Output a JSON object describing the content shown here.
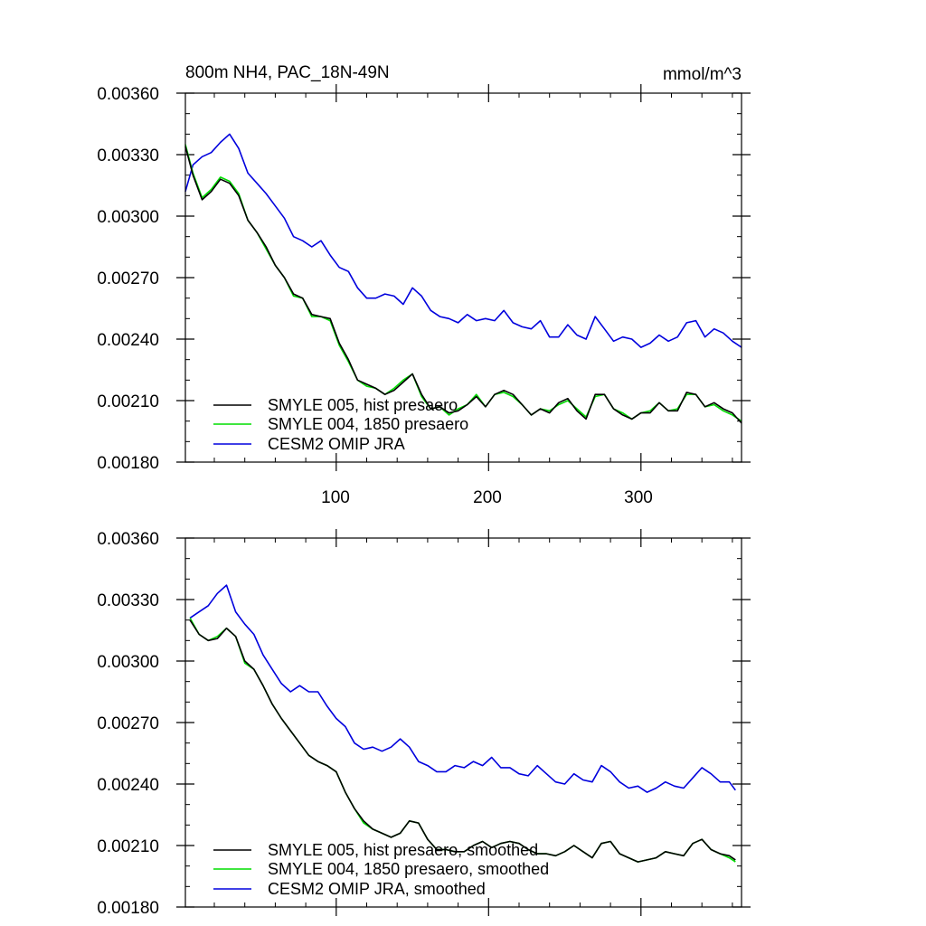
{
  "chart_data": [
    {
      "type": "line",
      "title": "800m NH4, PAC_18N-49N",
      "units": "mmol/m^3",
      "xlim": [
        1,
        366
      ],
      "ylim": [
        0.0018,
        0.0036
      ],
      "yticks": [
        "0.00360",
        "0.00330",
        "0.00300",
        "0.00270",
        "0.00240",
        "0.00210",
        "0.00180"
      ],
      "xticks": [
        "100",
        "200",
        "300"
      ],
      "legend": [
        "SMYLE 005, hist presaero",
        "SMYLE 004, 1850 presaero",
        "CESM2 OMIP JRA"
      ],
      "series": [
        {
          "name": "SMYLE 005, hist presaero",
          "color": "#000000",
          "x": [
            1,
            6,
            12,
            18,
            24,
            30,
            36,
            42,
            48,
            54,
            60,
            66,
            72,
            78,
            84,
            90,
            96,
            102,
            108,
            114,
            120,
            126,
            132,
            138,
            144,
            150,
            156,
            162,
            168,
            174,
            180,
            186,
            192,
            198,
            204,
            210,
            216,
            222,
            228,
            234,
            240,
            246,
            252,
            258,
            264,
            270,
            276,
            282,
            288,
            294,
            300,
            306,
            312,
            318,
            324,
            330,
            336,
            342,
            348,
            354,
            360,
            366
          ],
          "values": [
            0.00334,
            0.0032,
            0.00308,
            0.00312,
            0.00318,
            0.00316,
            0.0031,
            0.00298,
            0.00292,
            0.00285,
            0.00276,
            0.0027,
            0.00262,
            0.0026,
            0.00252,
            0.00251,
            0.0025,
            0.00238,
            0.0023,
            0.0022,
            0.00218,
            0.00216,
            0.00213,
            0.00215,
            0.00219,
            0.00223,
            0.00213,
            0.00206,
            0.00207,
            0.00204,
            0.00205,
            0.00208,
            0.00212,
            0.00207,
            0.00213,
            0.00215,
            0.00213,
            0.00208,
            0.00203,
            0.00206,
            0.00204,
            0.00209,
            0.00211,
            0.00205,
            0.00201,
            0.00213,
            0.00213,
            0.00206,
            0.00203,
            0.00201,
            0.00204,
            0.00204,
            0.00209,
            0.00205,
            0.00205,
            0.00214,
            0.00213,
            0.00207,
            0.00209,
            0.00206,
            0.00204,
            0.00199
          ]
        },
        {
          "name": "SMYLE 004, 1850 presaero",
          "color": "#00dd00",
          "x": [
            1,
            6,
            12,
            18,
            24,
            30,
            36,
            42,
            48,
            54,
            60,
            66,
            72,
            78,
            84,
            90,
            96,
            102,
            108,
            114,
            120,
            126,
            132,
            138,
            144,
            150,
            156,
            162,
            168,
            174,
            180,
            186,
            192,
            198,
            204,
            210,
            216,
            222,
            228,
            234,
            240,
            246,
            252,
            258,
            264,
            270,
            276,
            282,
            288,
            294,
            300,
            306,
            312,
            318,
            324,
            330,
            336,
            342,
            348,
            354,
            360,
            366
          ],
          "values": [
            0.00335,
            0.00321,
            0.00309,
            0.00313,
            0.00319,
            0.00317,
            0.00311,
            0.00298,
            0.00292,
            0.00284,
            0.00276,
            0.0027,
            0.00261,
            0.0026,
            0.00251,
            0.00251,
            0.00249,
            0.00237,
            0.00229,
            0.0022,
            0.00217,
            0.00216,
            0.00213,
            0.00216,
            0.0022,
            0.00223,
            0.00212,
            0.00206,
            0.00207,
            0.00203,
            0.00206,
            0.00208,
            0.00213,
            0.00207,
            0.00213,
            0.00214,
            0.00212,
            0.00208,
            0.00203,
            0.00206,
            0.00205,
            0.00208,
            0.0021,
            0.00206,
            0.00202,
            0.00212,
            0.00213,
            0.00206,
            0.00204,
            0.00201,
            0.00204,
            0.00205,
            0.00209,
            0.00205,
            0.00206,
            0.00213,
            0.00213,
            0.00207,
            0.00208,
            0.00205,
            0.00203,
            0.002
          ]
        },
        {
          "name": "CESM2 OMIP JRA",
          "color": "#0000dd",
          "x": [
            1,
            6,
            12,
            18,
            24,
            30,
            36,
            42,
            48,
            54,
            60,
            66,
            72,
            78,
            84,
            90,
            96,
            102,
            108,
            114,
            120,
            126,
            132,
            138,
            144,
            150,
            156,
            162,
            168,
            174,
            180,
            186,
            192,
            198,
            204,
            210,
            216,
            222,
            228,
            234,
            240,
            246,
            252,
            258,
            264,
            270,
            276,
            282,
            288,
            294,
            300,
            306,
            312,
            318,
            324,
            330,
            336,
            342,
            348,
            354,
            360,
            366
          ],
          "values": [
            0.00312,
            0.00325,
            0.00329,
            0.00331,
            0.00336,
            0.0034,
            0.00333,
            0.00321,
            0.00316,
            0.00311,
            0.00305,
            0.00299,
            0.0029,
            0.00288,
            0.00285,
            0.00288,
            0.00281,
            0.00275,
            0.00273,
            0.00265,
            0.0026,
            0.0026,
            0.00262,
            0.00261,
            0.00257,
            0.00265,
            0.00261,
            0.00254,
            0.00251,
            0.0025,
            0.00248,
            0.00252,
            0.00249,
            0.0025,
            0.00249,
            0.00254,
            0.00248,
            0.00246,
            0.00245,
            0.00249,
            0.00241,
            0.00241,
            0.00247,
            0.00242,
            0.0024,
            0.00251,
            0.00245,
            0.00239,
            0.00241,
            0.0024,
            0.00236,
            0.00238,
            0.00242,
            0.00239,
            0.00241,
            0.00248,
            0.00249,
            0.00241,
            0.00245,
            0.00243,
            0.00239,
            0.00236
          ]
        }
      ]
    },
    {
      "type": "line",
      "title": "",
      "xlim": [
        1,
        366
      ],
      "ylim": [
        0.0018,
        0.0036
      ],
      "yticks": [
        "0.00360",
        "0.00330",
        "0.00300",
        "0.00270",
        "0.00240",
        "0.00210",
        "0.00180"
      ],
      "xticks": [],
      "legend": [
        "SMYLE 005, hist presaero, smoothed",
        "SMYLE 004, 1850 presaero, smoothed",
        "CESM2 OMIP JRA, smoothed"
      ],
      "series": [
        {
          "name": "SMYLE 005, hist presaero, smoothed",
          "color": "#000000",
          "x": [
            4,
            10,
            16,
            22,
            28,
            34,
            40,
            46,
            52,
            58,
            64,
            70,
            76,
            82,
            88,
            94,
            100,
            106,
            112,
            118,
            124,
            130,
            136,
            142,
            148,
            154,
            160,
            166,
            172,
            178,
            184,
            190,
            196,
            202,
            208,
            214,
            220,
            226,
            232,
            238,
            244,
            250,
            256,
            262,
            268,
            274,
            280,
            286,
            292,
            298,
            304,
            310,
            316,
            322,
            328,
            334,
            340,
            346,
            352,
            358,
            362
          ],
          "values": [
            0.0032,
            0.00313,
            0.0031,
            0.00311,
            0.00316,
            0.00312,
            0.003,
            0.00296,
            0.00288,
            0.00279,
            0.00272,
            0.00266,
            0.0026,
            0.00254,
            0.00251,
            0.00249,
            0.00246,
            0.00236,
            0.00228,
            0.00222,
            0.00218,
            0.00216,
            0.00214,
            0.00216,
            0.00222,
            0.00221,
            0.00213,
            0.00208,
            0.00208,
            0.00207,
            0.00207,
            0.0021,
            0.00212,
            0.00209,
            0.00211,
            0.00212,
            0.00211,
            0.00208,
            0.00206,
            0.00206,
            0.00205,
            0.00207,
            0.0021,
            0.00207,
            0.00204,
            0.00211,
            0.00212,
            0.00206,
            0.00204,
            0.00202,
            0.00203,
            0.00204,
            0.00207,
            0.00206,
            0.00205,
            0.00211,
            0.00213,
            0.00208,
            0.00206,
            0.00205,
            0.00203
          ]
        },
        {
          "name": "SMYLE 004, 1850 presaero, smoothed",
          "color": "#00dd00",
          "x": [
            4,
            10,
            16,
            22,
            28,
            34,
            40,
            46,
            52,
            58,
            64,
            70,
            76,
            82,
            88,
            94,
            100,
            106,
            112,
            118,
            124,
            130,
            136,
            142,
            148,
            154,
            160,
            166,
            172,
            178,
            184,
            190,
            196,
            202,
            208,
            214,
            220,
            226,
            232,
            238,
            244,
            250,
            256,
            262,
            268,
            274,
            280,
            286,
            292,
            298,
            304,
            310,
            316,
            322,
            328,
            334,
            340,
            346,
            352,
            358,
            362
          ],
          "values": [
            0.00321,
            0.00313,
            0.0031,
            0.00312,
            0.00316,
            0.00312,
            0.00299,
            0.00296,
            0.00288,
            0.00279,
            0.00272,
            0.00266,
            0.0026,
            0.00254,
            0.00251,
            0.00249,
            0.00246,
            0.00236,
            0.00228,
            0.00221,
            0.00218,
            0.00216,
            0.00214,
            0.00216,
            0.00222,
            0.00221,
            0.00213,
            0.00208,
            0.00208,
            0.00207,
            0.00207,
            0.0021,
            0.00212,
            0.00209,
            0.00211,
            0.00212,
            0.00211,
            0.00208,
            0.00206,
            0.00206,
            0.00205,
            0.00207,
            0.0021,
            0.00207,
            0.00204,
            0.00211,
            0.00212,
            0.00206,
            0.00204,
            0.00202,
            0.00203,
            0.00204,
            0.00207,
            0.00206,
            0.00205,
            0.00211,
            0.00213,
            0.00208,
            0.00206,
            0.00204,
            0.00202
          ]
        },
        {
          "name": "CESM2 OMIP JRA, smoothed",
          "color": "#0000dd",
          "x": [
            4,
            10,
            16,
            22,
            28,
            34,
            40,
            46,
            52,
            58,
            64,
            70,
            76,
            82,
            88,
            94,
            100,
            106,
            112,
            118,
            124,
            130,
            136,
            142,
            148,
            154,
            160,
            166,
            172,
            178,
            184,
            190,
            196,
            202,
            208,
            214,
            220,
            226,
            232,
            238,
            244,
            250,
            256,
            262,
            268,
            274,
            280,
            286,
            292,
            298,
            304,
            310,
            316,
            322,
            328,
            334,
            340,
            346,
            352,
            358,
            362
          ],
          "values": [
            0.00321,
            0.00324,
            0.00327,
            0.00333,
            0.00337,
            0.00324,
            0.00318,
            0.00313,
            0.00303,
            0.00296,
            0.00289,
            0.00285,
            0.00288,
            0.00285,
            0.00285,
            0.00278,
            0.00272,
            0.00268,
            0.0026,
            0.00257,
            0.00258,
            0.00256,
            0.00258,
            0.00262,
            0.00258,
            0.00251,
            0.00249,
            0.00246,
            0.00246,
            0.00249,
            0.00248,
            0.00251,
            0.00249,
            0.00253,
            0.00248,
            0.00248,
            0.00245,
            0.00244,
            0.00249,
            0.00245,
            0.00241,
            0.0024,
            0.00245,
            0.00242,
            0.00241,
            0.00249,
            0.00246,
            0.00241,
            0.00238,
            0.00239,
            0.00236,
            0.00238,
            0.00241,
            0.00239,
            0.00238,
            0.00243,
            0.00248,
            0.00245,
            0.00241,
            0.00241,
            0.00237
          ]
        }
      ]
    }
  ]
}
